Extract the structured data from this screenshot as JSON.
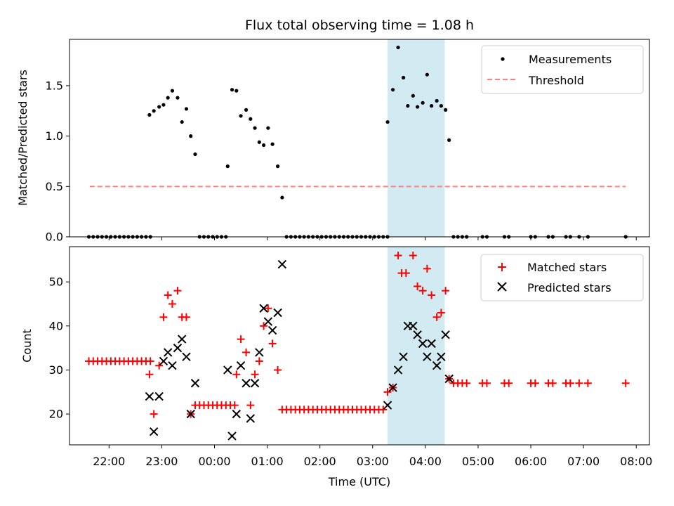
{
  "chart_data": [
    {
      "type": "scatter",
      "title": "Flux total observing time = 1.08 h",
      "ylabel": "Matched/Predicted stars",
      "ylim": [
        0,
        1.96
      ],
      "yticks": [
        0.0,
        0.5,
        1.0,
        1.5
      ],
      "ytick_labels": [
        "0.0",
        "0.5",
        "1.0",
        "1.5"
      ],
      "xlim": [
        "21:15",
        "08:15"
      ],
      "highlight_span": {
        "from": "03:17",
        "to": "04:22",
        "color": "#add8e6"
      },
      "legend": {
        "position": "top-right",
        "entries": [
          "Measurements",
          "Threshold"
        ]
      },
      "threshold": {
        "name": "Threshold",
        "value": 0.5,
        "x_from": "21:38",
        "x_to": "07:48",
        "color": "#ff8080"
      },
      "series": [
        {
          "name": "Measurements",
          "color": "#000000",
          "marker": "dot",
          "points": [
            [
              "21:37",
              0
            ],
            [
              "21:42",
              0
            ],
            [
              "21:47",
              0
            ],
            [
              "21:52",
              0
            ],
            [
              "21:57",
              0
            ],
            [
              "22:02",
              0
            ],
            [
              "22:07",
              0
            ],
            [
              "22:12",
              0
            ],
            [
              "22:17",
              0
            ],
            [
              "22:22",
              0
            ],
            [
              "22:27",
              0
            ],
            [
              "22:32",
              0
            ],
            [
              "22:37",
              0
            ],
            [
              "22:42",
              0
            ],
            [
              "22:47",
              0
            ],
            [
              "22:46",
              1.21
            ],
            [
              "22:51",
              1.25
            ],
            [
              "22:57",
              1.29
            ],
            [
              "23:02",
              1.31
            ],
            [
              "23:07",
              1.38
            ],
            [
              "23:12",
              1.45
            ],
            [
              "23:18",
              1.38
            ],
            [
              "23:23",
              1.14
            ],
            [
              "23:28",
              1.27
            ],
            [
              "23:33",
              1.0
            ],
            [
              "23:38",
              0.82
            ],
            [
              "23:43",
              0
            ],
            [
              "23:48",
              0
            ],
            [
              "23:53",
              0
            ],
            [
              "23:58",
              0
            ],
            [
              "00:03",
              0
            ],
            [
              "00:08",
              0
            ],
            [
              "00:13",
              0
            ],
            [
              "00:15",
              0.7
            ],
            [
              "00:20",
              1.46
            ],
            [
              "00:25",
              1.45
            ],
            [
              "00:30",
              1.2
            ],
            [
              "00:36",
              1.26
            ],
            [
              "00:41",
              1.17
            ],
            [
              "00:46",
              1.08
            ],
            [
              "00:51",
              0.94
            ],
            [
              "00:56",
              0.91
            ],
            [
              "01:01",
              1.08
            ],
            [
              "01:06",
              0.92
            ],
            [
              "01:12",
              0.7
            ],
            [
              "01:17",
              0.39
            ],
            [
              "01:22",
              0
            ],
            [
              "01:27",
              0
            ],
            [
              "01:32",
              0
            ],
            [
              "01:37",
              0
            ],
            [
              "01:42",
              0
            ],
            [
              "01:47",
              0
            ],
            [
              "01:52",
              0
            ],
            [
              "01:57",
              0
            ],
            [
              "02:02",
              0
            ],
            [
              "02:07",
              0
            ],
            [
              "02:12",
              0
            ],
            [
              "02:17",
              0
            ],
            [
              "02:22",
              0
            ],
            [
              "02:27",
              0
            ],
            [
              "02:32",
              0
            ],
            [
              "02:37",
              0
            ],
            [
              "02:42",
              0
            ],
            [
              "02:47",
              0
            ],
            [
              "02:52",
              0
            ],
            [
              "02:57",
              0
            ],
            [
              "03:02",
              0
            ],
            [
              "03:07",
              0
            ],
            [
              "03:12",
              0
            ],
            [
              "03:17",
              0
            ],
            [
              "03:17",
              1.14
            ],
            [
              "03:23",
              1.46
            ],
            [
              "03:29",
              1.88
            ],
            [
              "03:35",
              1.58
            ],
            [
              "03:40",
              1.3
            ],
            [
              "03:46",
              1.4
            ],
            [
              "03:51",
              1.29
            ],
            [
              "03:57",
              1.33
            ],
            [
              "04:02",
              1.61
            ],
            [
              "04:07",
              1.3
            ],
            [
              "04:13",
              1.35
            ],
            [
              "04:18",
              1.3
            ],
            [
              "04:23",
              1.26
            ],
            [
              "04:27",
              0.96
            ],
            [
              "04:32",
              0
            ],
            [
              "04:37",
              0
            ],
            [
              "04:42",
              0
            ],
            [
              "04:47",
              0
            ],
            [
              "05:05",
              0
            ],
            [
              "05:10",
              0
            ],
            [
              "05:30",
              0
            ],
            [
              "05:35",
              0
            ],
            [
              "06:00",
              0
            ],
            [
              "06:05",
              0
            ],
            [
              "06:20",
              0
            ],
            [
              "06:25",
              0
            ],
            [
              "06:40",
              0
            ],
            [
              "06:45",
              0
            ],
            [
              "06:55",
              0
            ],
            [
              "07:05",
              0
            ],
            [
              "07:48",
              0
            ]
          ]
        }
      ],
      "xtick_labels": [
        "22:00",
        "23:00",
        "00:00",
        "01:00",
        "02:00",
        "03:00",
        "04:00",
        "05:00",
        "06:00",
        "07:00",
        "08:00"
      ]
    },
    {
      "type": "scatter",
      "ylabel": "Count",
      "xlabel": "Time (UTC)",
      "ylim": [
        13,
        58
      ],
      "yticks": [
        20,
        30,
        40,
        50
      ],
      "ytick_labels": [
        "20",
        "30",
        "40",
        "50"
      ],
      "xlim": [
        "21:15",
        "08:15"
      ],
      "xticks": [
        "22:00",
        "23:00",
        "00:00",
        "01:00",
        "02:00",
        "03:00",
        "04:00",
        "05:00",
        "06:00",
        "07:00",
        "08:00"
      ],
      "xtick_labels": [
        "22:00",
        "23:00",
        "00:00",
        "01:00",
        "02:00",
        "03:00",
        "04:00",
        "05:00",
        "06:00",
        "07:00",
        "08:00"
      ],
      "highlight_span": {
        "from": "03:17",
        "to": "04:22",
        "color": "#add8e6"
      },
      "legend": {
        "position": "top-right",
        "entries": [
          "Matched stars",
          "Predicted stars"
        ]
      },
      "series": [
        {
          "name": "Matched stars",
          "color": "#ff0000",
          "marker": "plus",
          "points": [
            [
              "21:37",
              32
            ],
            [
              "21:42",
              32
            ],
            [
              "21:47",
              32
            ],
            [
              "21:52",
              32
            ],
            [
              "21:57",
              32
            ],
            [
              "22:02",
              32
            ],
            [
              "22:07",
              32
            ],
            [
              "22:12",
              32
            ],
            [
              "22:17",
              32
            ],
            [
              "22:22",
              32
            ],
            [
              "22:27",
              32
            ],
            [
              "22:32",
              32
            ],
            [
              "22:37",
              32
            ],
            [
              "22:42",
              32
            ],
            [
              "22:47",
              32
            ],
            [
              "22:46",
              29
            ],
            [
              "22:51",
              20
            ],
            [
              "22:57",
              31
            ],
            [
              "23:02",
              42
            ],
            [
              "23:07",
              47
            ],
            [
              "23:12",
              45
            ],
            [
              "23:18",
              48
            ],
            [
              "23:23",
              42
            ],
            [
              "23:28",
              42
            ],
            [
              "23:33",
              20
            ],
            [
              "23:38",
              22
            ],
            [
              "23:43",
              22
            ],
            [
              "23:48",
              22
            ],
            [
              "23:53",
              22
            ],
            [
              "23:58",
              22
            ],
            [
              "00:03",
              22
            ],
            [
              "00:08",
              22
            ],
            [
              "00:13",
              22
            ],
            [
              "00:18",
              22
            ],
            [
              "00:23",
              22
            ],
            [
              "00:25",
              29
            ],
            [
              "00:30",
              37
            ],
            [
              "00:36",
              34
            ],
            [
              "00:41",
              22
            ],
            [
              "00:46",
              29
            ],
            [
              "00:51",
              32
            ],
            [
              "00:56",
              40
            ],
            [
              "01:01",
              44
            ],
            [
              "01:06",
              36
            ],
            [
              "01:12",
              30
            ],
            [
              "01:17",
              21
            ],
            [
              "01:22",
              21
            ],
            [
              "01:27",
              21
            ],
            [
              "01:32",
              21
            ],
            [
              "01:37",
              21
            ],
            [
              "01:42",
              21
            ],
            [
              "01:47",
              21
            ],
            [
              "01:52",
              21
            ],
            [
              "01:57",
              21
            ],
            [
              "02:02",
              21
            ],
            [
              "02:07",
              21
            ],
            [
              "02:12",
              21
            ],
            [
              "02:17",
              21
            ],
            [
              "02:22",
              21
            ],
            [
              "02:27",
              21
            ],
            [
              "02:32",
              21
            ],
            [
              "02:37",
              21
            ],
            [
              "02:42",
              21
            ],
            [
              "02:47",
              21
            ],
            [
              "02:52",
              21
            ],
            [
              "02:57",
              21
            ],
            [
              "03:02",
              21
            ],
            [
              "03:07",
              21
            ],
            [
              "03:12",
              21
            ],
            [
              "03:17",
              25
            ],
            [
              "03:23",
              26
            ],
            [
              "03:29",
              56
            ],
            [
              "03:33",
              52
            ],
            [
              "03:38",
              52
            ],
            [
              "03:46",
              56
            ],
            [
              "03:51",
              49
            ],
            [
              "03:57",
              48
            ],
            [
              "04:02",
              53
            ],
            [
              "04:07",
              47
            ],
            [
              "04:13",
              42
            ],
            [
              "04:18",
              43
            ],
            [
              "04:23",
              48
            ],
            [
              "04:27",
              28
            ],
            [
              "04:32",
              27
            ],
            [
              "04:37",
              27
            ],
            [
              "04:42",
              27
            ],
            [
              "04:47",
              27
            ],
            [
              "05:05",
              27
            ],
            [
              "05:10",
              27
            ],
            [
              "05:30",
              27
            ],
            [
              "05:35",
              27
            ],
            [
              "06:00",
              27
            ],
            [
              "06:05",
              27
            ],
            [
              "06:20",
              27
            ],
            [
              "06:25",
              27
            ],
            [
              "06:40",
              27
            ],
            [
              "06:45",
              27
            ],
            [
              "06:55",
              27
            ],
            [
              "07:05",
              27
            ],
            [
              "07:48",
              27
            ]
          ]
        },
        {
          "name": "Predicted stars",
          "color": "#000000",
          "marker": "x",
          "points": [
            [
              "22:46",
              24
            ],
            [
              "22:51",
              16
            ],
            [
              "22:57",
              24
            ],
            [
              "23:02",
              32
            ],
            [
              "23:07",
              34
            ],
            [
              "23:12",
              31
            ],
            [
              "23:18",
              35
            ],
            [
              "23:23",
              37
            ],
            [
              "23:28",
              33
            ],
            [
              "23:33",
              20
            ],
            [
              "23:38",
              27
            ],
            [
              "00:15",
              30
            ],
            [
              "00:20",
              15
            ],
            [
              "00:25",
              20
            ],
            [
              "00:30",
              31
            ],
            [
              "00:36",
              27
            ],
            [
              "00:41",
              19
            ],
            [
              "00:46",
              27
            ],
            [
              "00:51",
              34
            ],
            [
              "00:56",
              44
            ],
            [
              "01:01",
              41
            ],
            [
              "01:06",
              39
            ],
            [
              "01:12",
              43
            ],
            [
              "01:17",
              54
            ],
            [
              "03:17",
              22
            ],
            [
              "03:23",
              26
            ],
            [
              "03:29",
              30
            ],
            [
              "03:35",
              33
            ],
            [
              "03:40",
              40
            ],
            [
              "03:46",
              40
            ],
            [
              "03:51",
              38
            ],
            [
              "03:57",
              36
            ],
            [
              "04:02",
              33
            ],
            [
              "04:07",
              36
            ],
            [
              "04:13",
              31
            ],
            [
              "04:18",
              33
            ],
            [
              "04:23",
              38
            ],
            [
              "04:27",
              28
            ]
          ]
        }
      ]
    }
  ]
}
